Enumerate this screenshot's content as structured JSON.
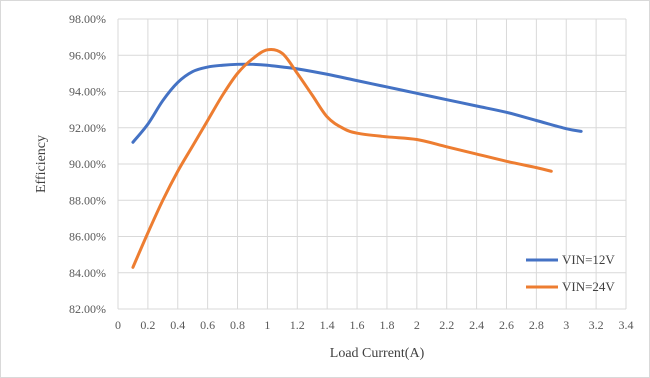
{
  "chart_data": {
    "type": "line",
    "title": "",
    "xlabel": "Load Current(A)",
    "ylabel": "Efficiency",
    "xlim": [
      0,
      3.4
    ],
    "ylim": [
      82,
      98
    ],
    "x_ticks": [
      0,
      0.2,
      0.4,
      0.6,
      0.8,
      1,
      1.2,
      1.4,
      1.6,
      1.8,
      2,
      2.2,
      2.4,
      2.6,
      2.8,
      3,
      3.2,
      3.4
    ],
    "x_tick_labels": [
      "0",
      "0.2",
      "0.4",
      "0.6",
      "0.8",
      "1",
      "1.2",
      "1.4",
      "1.6",
      "1.8",
      "2",
      "2.2",
      "2.4",
      "2.6",
      "2.8",
      "3",
      "3.2",
      "3.4"
    ],
    "y_ticks": [
      82,
      84,
      86,
      88,
      90,
      92,
      94,
      96,
      98
    ],
    "y_tick_labels": [
      "82.00%",
      "84.00%",
      "86.00%",
      "88.00%",
      "90.00%",
      "92.00%",
      "94.00%",
      "96.00%",
      "98.00%"
    ],
    "grid": true,
    "legend_position": "bottom-right",
    "series": [
      {
        "name": "VIN=12V",
        "color": "#4472c4",
        "x": [
          0.1,
          0.2,
          0.3,
          0.4,
          0.5,
          0.6,
          0.7,
          0.8,
          0.9,
          1.0,
          1.1,
          1.2,
          1.4,
          1.6,
          1.8,
          2.0,
          2.2,
          2.4,
          2.6,
          2.8,
          3.0,
          3.1
        ],
        "y": [
          91.2,
          92.2,
          93.5,
          94.5,
          95.1,
          95.35,
          95.45,
          95.5,
          95.5,
          95.45,
          95.35,
          95.25,
          94.95,
          94.6,
          94.25,
          93.9,
          93.55,
          93.2,
          92.85,
          92.4,
          91.95,
          91.8
        ]
      },
      {
        "name": "VIN=24V",
        "color": "#ed7d31",
        "x": [
          0.1,
          0.2,
          0.3,
          0.4,
          0.5,
          0.6,
          0.7,
          0.8,
          0.9,
          1.0,
          1.1,
          1.2,
          1.3,
          1.4,
          1.5,
          1.6,
          1.8,
          2.0,
          2.2,
          2.4,
          2.6,
          2.8,
          2.9
        ],
        "y": [
          84.3,
          86.2,
          88.0,
          89.6,
          91.0,
          92.4,
          93.8,
          95.0,
          95.8,
          96.3,
          96.1,
          95.0,
          93.8,
          92.6,
          92.0,
          91.7,
          91.5,
          91.35,
          90.95,
          90.55,
          90.15,
          89.8,
          89.6
        ]
      }
    ]
  }
}
